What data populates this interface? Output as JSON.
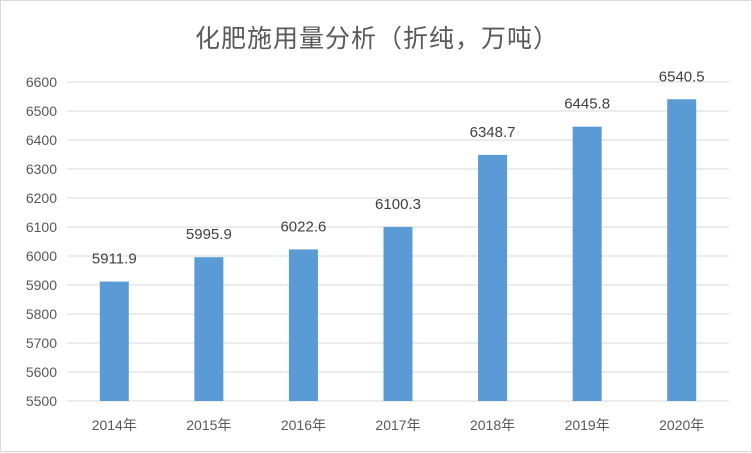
{
  "chart_data": {
    "type": "bar",
    "title": "化肥施用量分析（折纯，万吨）",
    "categories": [
      "2014年",
      "2015年",
      "2016年",
      "2017年",
      "2018年",
      "2019年",
      "2020年"
    ],
    "values": [
      5911.9,
      5995.9,
      6022.6,
      6100.3,
      6348.7,
      6445.8,
      6540.5
    ],
    "data_labels": [
      "5911.9",
      "5995.9",
      "6022.6",
      "6100.3",
      "6348.7",
      "6445.8",
      "6540.5"
    ],
    "xlabel": "",
    "ylabel": "",
    "ylim": [
      5500,
      6600
    ],
    "yticks": [
      5500,
      5600,
      5700,
      5800,
      5900,
      6000,
      6100,
      6200,
      6300,
      6400,
      6500,
      6600
    ],
    "grid": true,
    "legend": "none",
    "bar_color": "#5B9BD5"
  }
}
